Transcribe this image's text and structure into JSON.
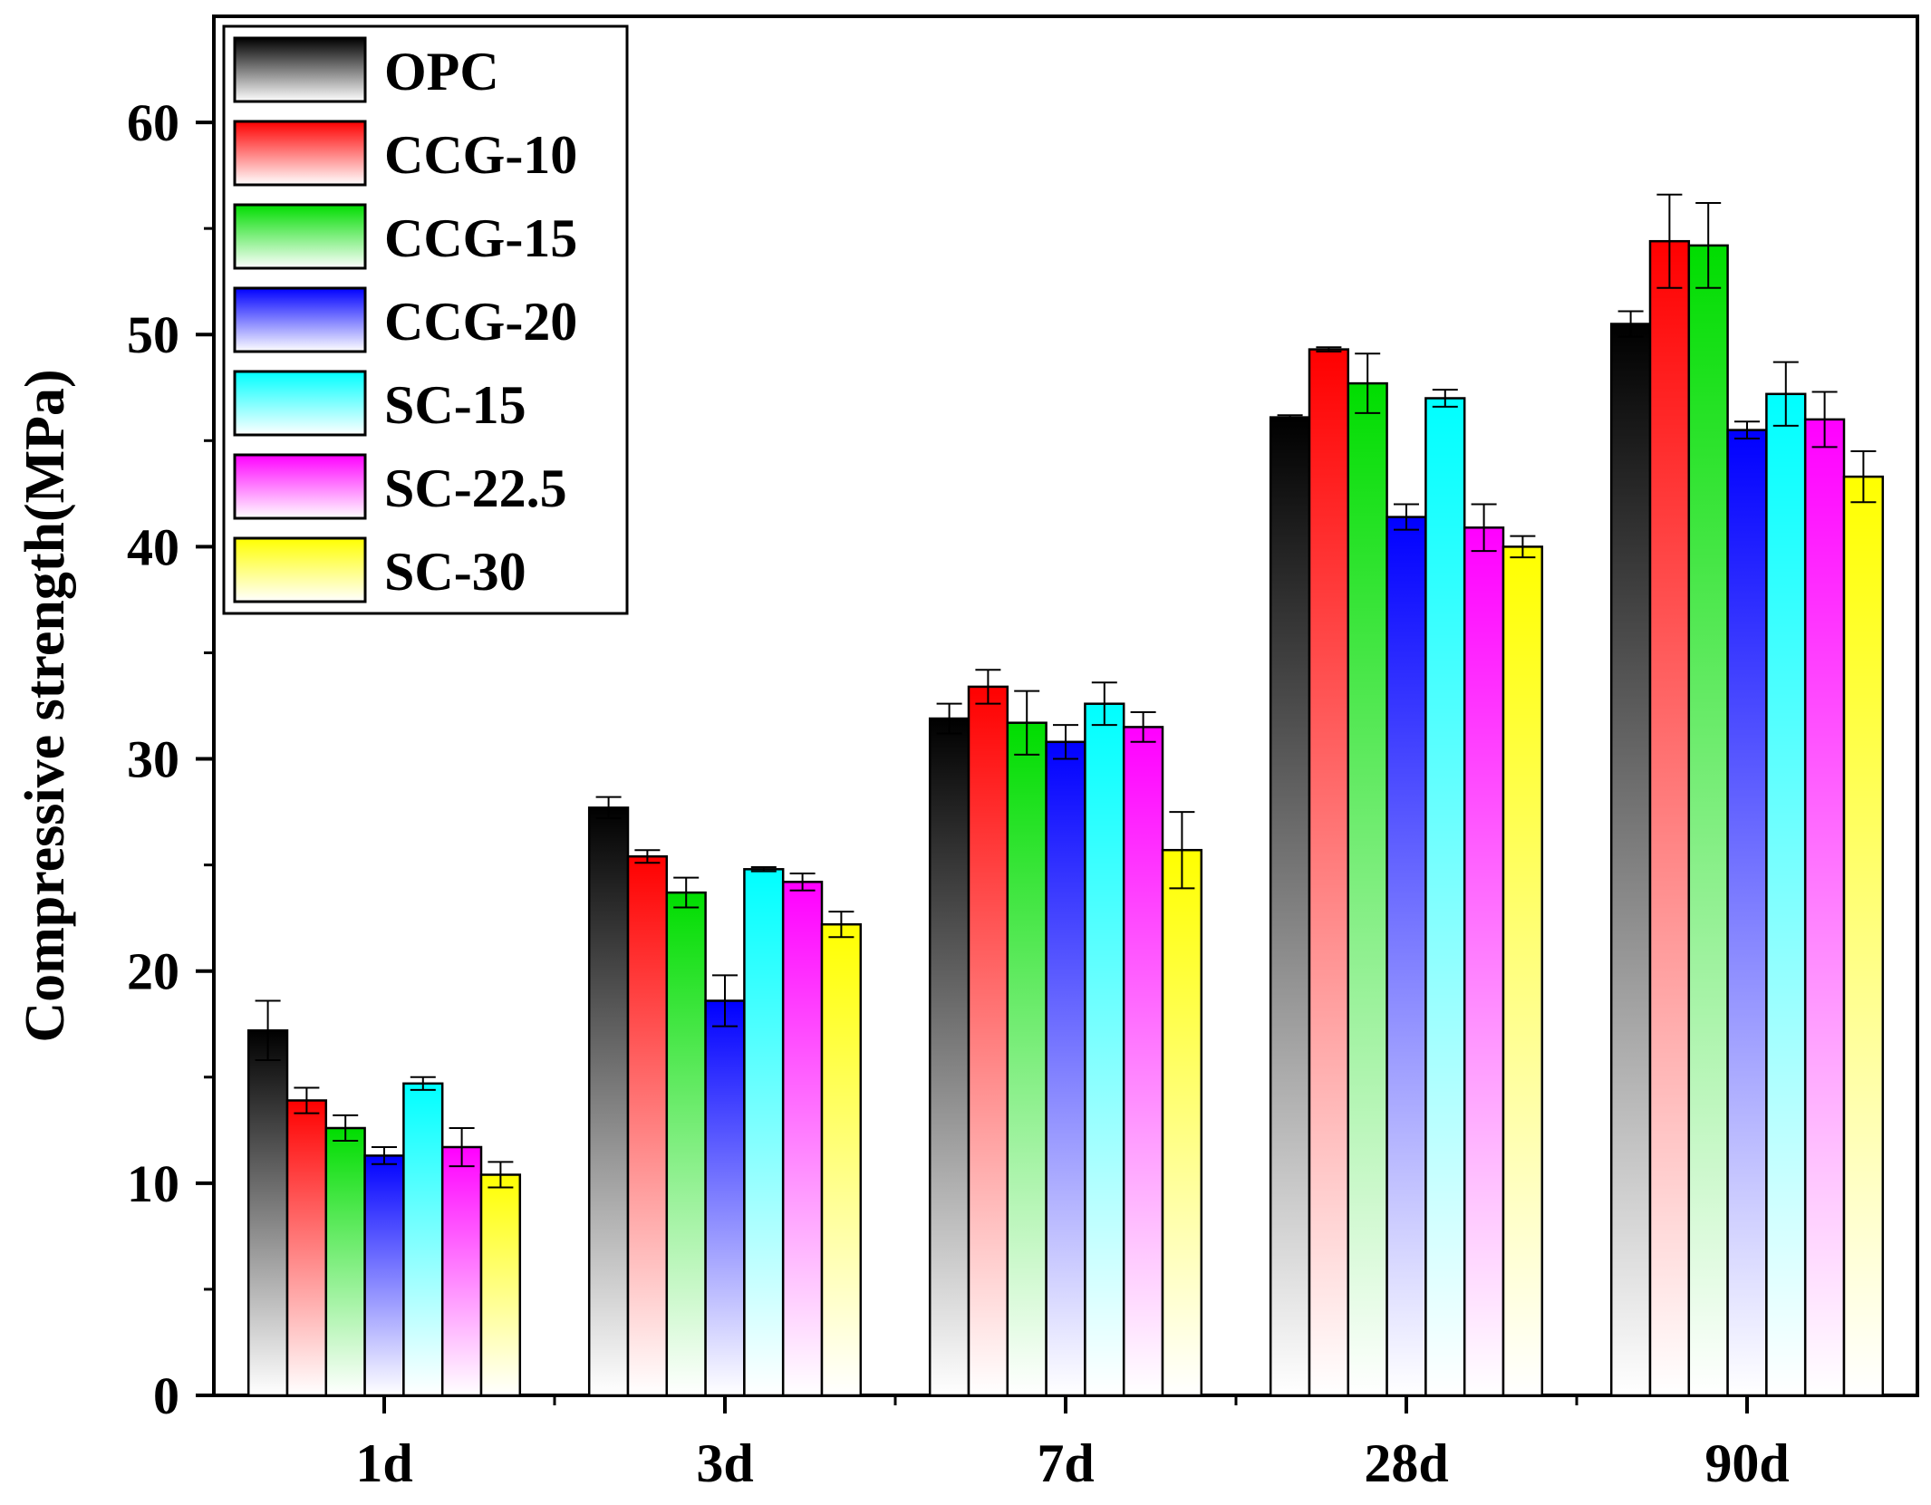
{
  "chart_data": {
    "type": "bar",
    "title": "",
    "xlabel": "",
    "ylabel": "Compressive strength(MPa)",
    "ylim": [
      0,
      65
    ],
    "yticks": [
      0,
      10,
      20,
      30,
      40,
      50,
      60
    ],
    "grid": false,
    "legend_position": "top-left",
    "categories": [
      "1d",
      "3d",
      "7d",
      "28d",
      "90d"
    ],
    "series": [
      {
        "name": "OPC",
        "color": "#000000",
        "values": [
          17.2,
          27.7,
          31.9,
          46.1,
          50.5
        ],
        "errors": [
          1.4,
          0.5,
          0.7,
          0.1,
          0.6
        ]
      },
      {
        "name": "CCG-10",
        "color": "#ff0000",
        "values": [
          13.9,
          25.4,
          33.4,
          49.3,
          54.4
        ],
        "errors": [
          0.6,
          0.3,
          0.8,
          0.1,
          2.2
        ]
      },
      {
        "name": "CCG-15",
        "color": "#00dd00",
        "values": [
          12.6,
          23.7,
          31.7,
          47.7,
          54.2
        ],
        "errors": [
          0.6,
          0.7,
          1.5,
          1.4,
          2.0
        ]
      },
      {
        "name": "CCG-20",
        "color": "#0000ff",
        "values": [
          11.3,
          18.6,
          30.8,
          41.4,
          45.5
        ],
        "errors": [
          0.4,
          1.2,
          0.8,
          0.6,
          0.4
        ]
      },
      {
        "name": "SC-15",
        "color": "#00ffff",
        "values": [
          14.7,
          24.8,
          32.6,
          47.0,
          47.2
        ],
        "errors": [
          0.3,
          0.1,
          1.0,
          0.4,
          1.5
        ]
      },
      {
        "name": "SC-22.5",
        "color": "#ff00ff",
        "values": [
          11.7,
          24.2,
          31.5,
          40.9,
          46.0
        ],
        "errors": [
          0.9,
          0.4,
          0.7,
          1.1,
          1.3
        ]
      },
      {
        "name": "SC-30",
        "color": "#ffff00",
        "values": [
          10.4,
          22.2,
          25.7,
          40.0,
          43.3
        ],
        "errors": [
          0.6,
          0.6,
          1.8,
          0.5,
          1.2
        ]
      }
    ]
  }
}
